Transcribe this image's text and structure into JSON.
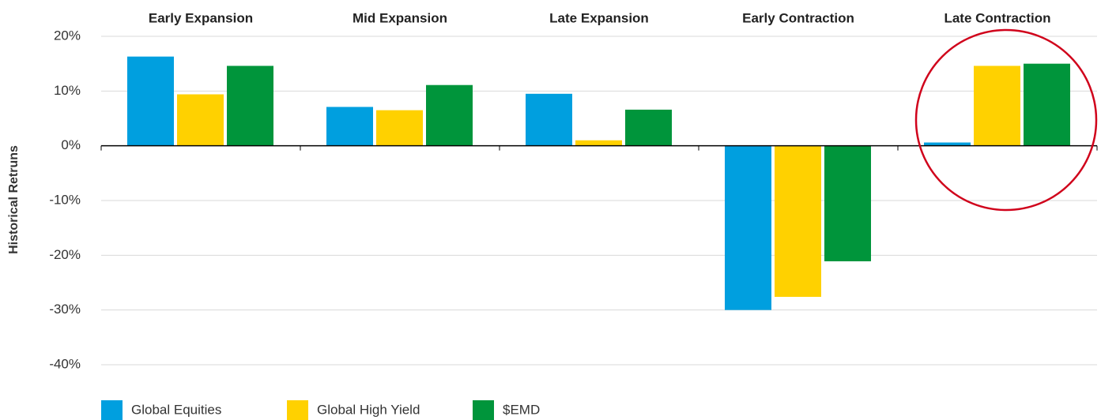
{
  "chart_data": {
    "type": "bar",
    "y_label": "Historical Retruns",
    "categories": [
      "Early Expansion",
      "Mid Expansion",
      "Late Expansion",
      "Early Contraction",
      "Late Contraction"
    ],
    "series": [
      {
        "name": "Global Equities",
        "color": "#009fdf",
        "values": [
          16.3,
          7.1,
          9.5,
          -30.0,
          0.6
        ]
      },
      {
        "name": "Global High Yield",
        "color": "#ffd100",
        "values": [
          9.4,
          6.5,
          1.0,
          -27.6,
          14.6
        ]
      },
      {
        "name": "$EMD",
        "color": "#00953b",
        "values": [
          14.6,
          11.1,
          6.6,
          -21.1,
          15.0
        ]
      }
    ],
    "ylim": [
      -40,
      20
    ],
    "yticks": [
      {
        "value": -40,
        "label": "-40%"
      },
      {
        "value": -30,
        "label": "-30%"
      },
      {
        "value": -20,
        "label": "-20%"
      },
      {
        "value": -10,
        "label": "-10%"
      },
      {
        "value": 0,
        "label": "0%"
      },
      {
        "value": 10,
        "label": "10%"
      },
      {
        "value": 20,
        "label": "20%"
      }
    ],
    "grid": true
  }
}
